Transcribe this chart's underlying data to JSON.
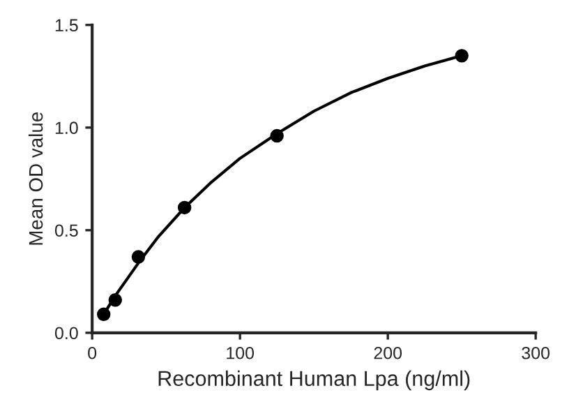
{
  "chart_data": {
    "type": "scatter",
    "xlabel": "Recombinant Human Lpa (ng/ml)",
    "ylabel": "Mean OD value",
    "xlim": [
      0,
      300
    ],
    "xticks": [
      0,
      100,
      200,
      300
    ],
    "ylim": [
      0,
      1.5
    ],
    "yticks": [
      {
        "value": 0,
        "label": "0.0"
      },
      {
        "value": 0.5,
        "label": "0.5"
      },
      {
        "value": 1.0,
        "label": "1.0"
      },
      {
        "value": 1.5,
        "label": "1.5"
      }
    ],
    "grid": false,
    "legend": false,
    "series": [
      {
        "color": "#000000",
        "marker": "circle",
        "x": [
          7.8125,
          15.625,
          31.25,
          62.5,
          125,
          250
        ],
        "values": [
          0.09,
          0.16,
          0.37,
          0.61,
          0.96,
          1.35
        ]
      },
      {
        "type": "line",
        "color": "#000000",
        "marker": "none",
        "line_style": "solid",
        "x": [
          7.8,
          15.6,
          31.25,
          45,
          62.5,
          80,
          100,
          125,
          150,
          175,
          200,
          225,
          250
        ],
        "values": [
          0.09,
          0.18,
          0.34,
          0.47,
          0.61,
          0.73,
          0.85,
          0.97,
          1.08,
          1.17,
          1.24,
          1.3,
          1.35
        ]
      }
    ]
  }
}
